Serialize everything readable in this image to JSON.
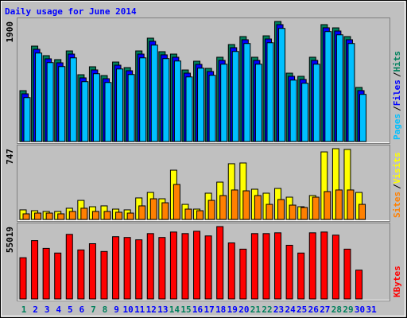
{
  "chart_data": [
    {
      "type": "bar",
      "title": "Daily usage for June 2014",
      "ylim": [
        0,
        1900
      ],
      "yticks": [
        1900
      ],
      "legend_separator": "/",
      "series": [
        {
          "name": "Hits",
          "color": "#00805C",
          "values": [
            805,
            1510,
            1359,
            1296,
            1434,
            1057,
            1183,
            1044,
            1258,
            1170,
            1434,
            1636,
            1422,
            1384,
            1132,
            1271,
            1158,
            1334,
            1535,
            1661,
            1334,
            1673,
            1900,
            1082,
            1032,
            1334,
            1850,
            1799,
            1661,
            856,
            null
          ]
        },
        {
          "name": "Files",
          "color": "#0000FF",
          "values": [
            755,
            1460,
            1309,
            1246,
            1384,
            1007,
            1133,
            994,
            1208,
            1120,
            1384,
            1586,
            1372,
            1334,
            1082,
            1221,
            1108,
            1284,
            1485,
            1611,
            1284,
            1623,
            1850,
            1032,
            982,
            1284,
            1800,
            1749,
            1611,
            806,
            null
          ]
        },
        {
          "name": "Pages",
          "color": "#00C0FF",
          "values": [
            695,
            1400,
            1249,
            1186,
            1324,
            947,
            1073,
            934,
            1148,
            1060,
            1324,
            1526,
            1312,
            1274,
            1022,
            1161,
            1048,
            1224,
            1425,
            1551,
            1224,
            1563,
            1790,
            972,
            922,
            1224,
            1740,
            1689,
            1551,
            746,
            null
          ]
        }
      ]
    },
    {
      "type": "bar",
      "ylim": [
        0,
        747
      ],
      "yticks": [
        747
      ],
      "legend_separator": "/",
      "series": [
        {
          "name": "Visits",
          "color": "#FFFF00",
          "values": [
            101,
            92,
            84,
            84,
            118,
            201,
            134,
            143,
            109,
            101,
            227,
            285,
            218,
            520,
            159,
            109,
            277,
            394,
            588,
            596,
            319,
            277,
            327,
            235,
            134,
            252,
            713,
            747,
            739,
            285,
            null
          ]
        },
        {
          "name": "Sites",
          "color": "#FF8000",
          "values": [
            59,
            67,
            67,
            59,
            84,
            118,
            84,
            84,
            76,
            67,
            143,
            218,
            176,
            369,
            109,
            92,
            201,
            252,
            311,
            302,
            252,
            159,
            210,
            151,
            126,
            235,
            294,
            311,
            311,
            159,
            null
          ]
        }
      ]
    },
    {
      "type": "bar",
      "ylim": [
        0,
        55019
      ],
      "yticks": [
        55019
      ],
      "categories": [
        "1",
        "2",
        "3",
        "4",
        "5",
        "6",
        "7",
        "8",
        "9",
        "10",
        "11",
        "12",
        "13",
        "14",
        "15",
        "16",
        "17",
        "18",
        "19",
        "20",
        "21",
        "22",
        "23",
        "24",
        "25",
        "26",
        "27",
        "28",
        "29",
        "30",
        "31"
      ],
      "label_colors": [
        "#00805C",
        "#0000FF",
        "#0000FF",
        "#0000FF",
        "#0000FF",
        "#0000FF",
        "#00805C",
        "#00805C",
        "#0000FF",
        "#0000FF",
        "#0000FF",
        "#0000FF",
        "#0000FF",
        "#00805C",
        "#00805C",
        "#0000FF",
        "#0000FF",
        "#0000FF",
        "#0000FF",
        "#0000FF",
        "#00805C",
        "#00805C",
        "#0000FF",
        "#0000FF",
        "#0000FF",
        "#0000FF",
        "#0000FF",
        "#00805C",
        "#00805C",
        "#0000FF",
        "#0000FF"
      ],
      "series": [
        {
          "name": "KBytes",
          "color": "#FF0000",
          "values": [
            31355,
            44370,
            38454,
            34905,
            49103,
            37271,
            42004,
            36088,
            47328,
            46737,
            44962,
            49694,
            46737,
            50878,
            49694,
            51469,
            47920,
            55019,
            42595,
            37863,
            49694,
            49694,
            50286,
            40821,
            34905,
            50286,
            50878,
            48511,
            37863,
            21889,
            null
          ]
        }
      ]
    }
  ]
}
